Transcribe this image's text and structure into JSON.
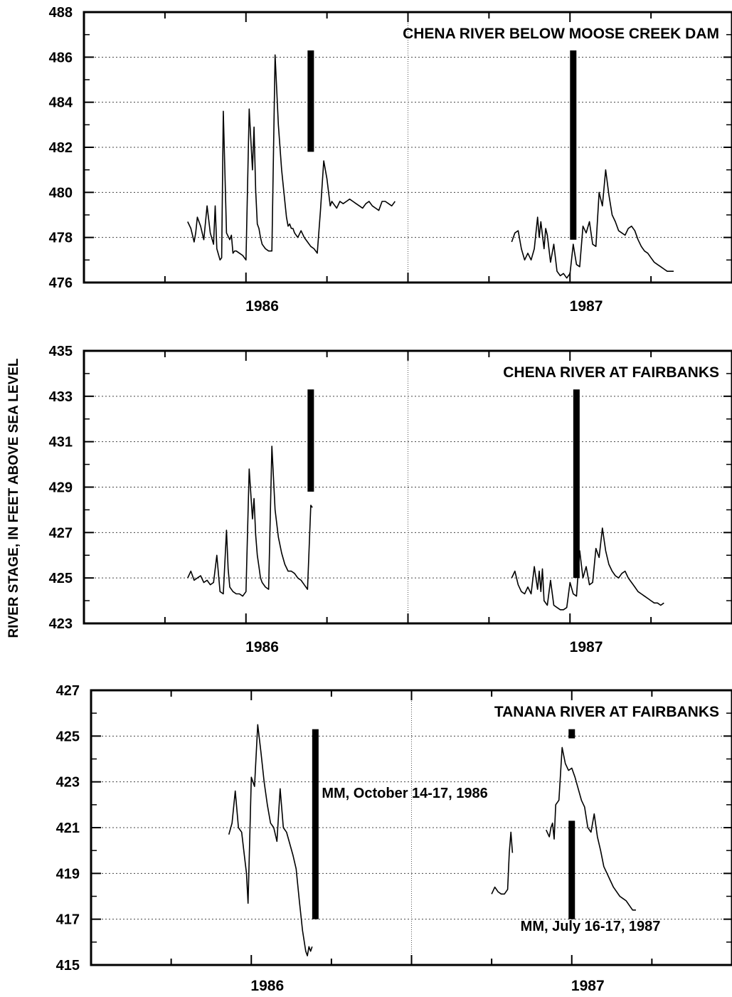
{
  "figure": {
    "ylabel": "RIVER STAGE, IN FEET ABOVE SEA LEVEL"
  },
  "chart_data": [
    {
      "type": "line",
      "title": "CHENA RIVER BELOW MOOSE CREEK DAM",
      "ylim": [
        476,
        488
      ],
      "yticks": [
        476,
        478,
        480,
        482,
        484,
        486,
        488
      ],
      "xlim": [
        1985.5,
        1987.5
      ],
      "year_labels": [
        "1986",
        "1987"
      ],
      "year_label_x": [
        1986.05,
        1987.05
      ],
      "grid": true,
      "series": [
        {
          "x": [
            1985.82,
            1985.83,
            1985.84,
            1985.845,
            1985.85,
            1985.86,
            1985.87,
            1985.88,
            1985.89,
            1985.9,
            1985.905,
            1985.91,
            1985.92,
            1985.925,
            1985.93,
            1985.94,
            1985.95,
            1985.955,
            1985.96,
            1985.965,
            1985.97,
            1985.98,
            1985.99,
            1986.0,
            1986.01,
            1986.02,
            1986.025,
            1986.03,
            1986.035,
            1986.04,
            1986.045,
            1986.05,
            1986.06,
            1986.07,
            1986.08,
            1986.09,
            1986.1,
            1986.11,
            1986.12,
            1986.125,
            1986.13,
            1986.135,
            1986.14,
            1986.145,
            1986.15,
            1986.16,
            1986.17,
            1986.18,
            1986.19,
            1986.2,
            1986.21,
            1986.22,
            1986.23,
            1986.24,
            1986.25,
            1986.26,
            1986.265,
            1986.27,
            1986.28,
            1986.29,
            1986.3,
            1986.31,
            1986.32,
            1986.33,
            1986.34,
            1986.35,
            1986.36,
            1986.37,
            1986.38,
            1986.39,
            1986.4,
            1986.41,
            1986.42,
            1986.43,
            1986.44,
            1986.45,
            1986.455,
            1986.46
          ],
          "y": [
            478.7,
            478.4,
            477.8,
            478.2,
            478.9,
            478.5,
            477.9,
            479.4,
            478.2,
            477.7,
            479.4,
            477.5,
            477.0,
            477.1,
            483.6,
            478.2,
            477.9,
            478.1,
            477.3,
            477.4,
            477.4,
            477.3,
            477.2,
            477.0,
            483.7,
            481.0,
            482.9,
            480.1,
            478.6,
            478.4,
            478.0,
            477.7,
            477.5,
            477.4,
            477.4,
            486.1,
            483.0,
            481.0,
            479.6,
            478.9,
            478.5,
            478.6,
            478.4,
            478.4,
            478.2,
            478.0,
            478.3,
            478.0,
            477.8,
            477.6,
            477.5,
            477.3,
            479.2,
            481.4,
            480.6,
            479.4,
            479.6,
            479.5,
            479.3,
            479.6,
            479.5,
            479.6,
            479.7,
            479.6,
            479.5,
            479.4,
            479.3,
            479.5,
            479.6,
            479.4,
            479.3,
            479.2,
            479.6,
            479.6,
            479.5,
            479.4,
            479.5,
            479.6
          ]
        },
        {
          "x": [
            1986.82,
            1986.83,
            1986.84,
            1986.85,
            1986.86,
            1986.87,
            1986.88,
            1986.89,
            1986.9,
            1986.905,
            1986.91,
            1986.92,
            1986.925,
            1986.93,
            1986.94,
            1986.95,
            1986.96,
            1986.97,
            1986.98,
            1986.99,
            1987.0,
            1987.01,
            1987.02,
            1987.03,
            1987.04,
            1987.05,
            1987.06,
            1987.07,
            1987.08,
            1987.09,
            1987.1,
            1987.11,
            1987.12,
            1987.13,
            1987.14,
            1987.15,
            1987.16,
            1987.17,
            1987.18,
            1987.19,
            1987.2,
            1987.21,
            1987.22,
            1987.23,
            1987.24,
            1987.25,
            1987.26,
            1987.27,
            1987.28,
            1987.29,
            1987.3,
            1987.31,
            1987.32
          ],
          "y": [
            477.8,
            478.2,
            478.3,
            477.5,
            477.0,
            477.3,
            477.0,
            477.5,
            478.9,
            478.0,
            478.7,
            477.5,
            478.4,
            478.1,
            476.9,
            477.7,
            476.5,
            476.3,
            476.4,
            476.2,
            476.4,
            477.7,
            476.8,
            476.7,
            478.5,
            478.2,
            478.7,
            477.7,
            477.6,
            480.0,
            479.4,
            481.0,
            479.9,
            479.0,
            478.7,
            478.3,
            478.2,
            478.1,
            478.4,
            478.5,
            478.3,
            477.9,
            477.6,
            477.4,
            477.3,
            477.1,
            476.9,
            476.8,
            476.7,
            476.6,
            476.5,
            476.5,
            476.5
          ]
        }
      ],
      "bars": [
        {
          "x": 1986.2,
          "y0": 481.8,
          "y1": 486.3
        },
        {
          "x": 1987.01,
          "y0": 477.9,
          "y1": 486.3
        }
      ]
    },
    {
      "type": "line",
      "title": "CHENA RIVER AT FAIRBANKS",
      "ylim": [
        423,
        435
      ],
      "yticks": [
        423,
        425,
        427,
        429,
        431,
        433,
        435
      ],
      "xlim": [
        1985.5,
        1987.5
      ],
      "year_labels": [
        "1986",
        "1987"
      ],
      "year_label_x": [
        1986.05,
        1987.05
      ],
      "grid": true,
      "series": [
        {
          "x": [
            1985.82,
            1985.83,
            1985.84,
            1985.85,
            1985.86,
            1985.87,
            1985.88,
            1985.89,
            1985.9,
            1985.91,
            1985.92,
            1985.93,
            1985.94,
            1985.945,
            1985.95,
            1985.96,
            1985.97,
            1985.98,
            1985.99,
            1986.0,
            1986.01,
            1986.02,
            1986.025,
            1986.03,
            1986.035,
            1986.04,
            1986.045,
            1986.05,
            1986.06,
            1986.07,
            1986.08,
            1986.09,
            1986.1,
            1986.11,
            1986.12,
            1986.13,
            1986.14,
            1986.15,
            1986.16,
            1986.17,
            1986.18,
            1986.19,
            1986.2,
            1986.205
          ],
          "y": [
            425.0,
            425.3,
            424.9,
            425.0,
            425.1,
            424.8,
            424.9,
            424.7,
            424.8,
            426.0,
            424.4,
            424.3,
            427.1,
            425.4,
            424.6,
            424.4,
            424.3,
            424.3,
            424.2,
            424.4,
            429.8,
            427.6,
            428.5,
            426.9,
            426.0,
            425.5,
            425.0,
            424.8,
            424.6,
            424.5,
            430.8,
            428.0,
            426.8,
            426.1,
            425.6,
            425.3,
            425.3,
            425.2,
            425.0,
            424.9,
            424.7,
            424.5,
            428.2,
            428.1
          ]
        },
        {
          "x": [
            1986.82,
            1986.83,
            1986.84,
            1986.85,
            1986.86,
            1986.87,
            1986.88,
            1986.89,
            1986.9,
            1986.905,
            1986.91,
            1986.915,
            1986.92,
            1986.93,
            1986.94,
            1986.95,
            1986.96,
            1986.97,
            1986.98,
            1986.99,
            1987.0,
            1987.01,
            1987.02,
            1987.03,
            1987.04,
            1987.05,
            1987.06,
            1987.07,
            1987.08,
            1987.09,
            1987.1,
            1987.11,
            1987.12,
            1987.13,
            1987.14,
            1987.15,
            1987.16,
            1987.17,
            1987.18,
            1987.19,
            1987.2,
            1987.21,
            1987.22,
            1987.23,
            1987.24,
            1987.25,
            1987.26,
            1987.27,
            1987.28,
            1987.29
          ],
          "y": [
            425.0,
            425.3,
            424.7,
            424.4,
            424.3,
            424.6,
            424.3,
            425.5,
            424.5,
            425.3,
            424.4,
            425.4,
            424.0,
            423.8,
            424.9,
            423.8,
            423.7,
            423.6,
            423.6,
            423.7,
            424.8,
            424.3,
            424.2,
            426.2,
            425.0,
            425.5,
            424.7,
            424.8,
            426.3,
            425.9,
            427.2,
            426.2,
            425.6,
            425.3,
            425.1,
            425.0,
            425.2,
            425.3,
            425.0,
            424.8,
            424.6,
            424.4,
            424.3,
            424.2,
            424.1,
            424.0,
            423.9,
            423.9,
            423.8,
            423.9
          ]
        }
      ],
      "bars": [
        {
          "x": 1986.2,
          "y0": 428.8,
          "y1": 433.3
        },
        {
          "x": 1987.02,
          "y0": 425.0,
          "y1": 433.3
        }
      ]
    },
    {
      "type": "line",
      "title": "TANANA RIVER AT FAIRBANKS",
      "ylim": [
        415,
        427
      ],
      "yticks": [
        415,
        417,
        419,
        421,
        423,
        425,
        427
      ],
      "xlim": [
        1985.5,
        1987.5
      ],
      "year_labels": [
        "1986",
        "1987"
      ],
      "year_label_x": [
        1986.05,
        1987.05
      ],
      "grid": true,
      "annotations": [
        {
          "text": "MM, October 14-17, 1986",
          "x": 1986.22,
          "y": 422.3,
          "anchor": "start"
        },
        {
          "text": "MM, July 16-17, 1987",
          "x": 1986.84,
          "y": 416.5,
          "anchor": "start"
        }
      ],
      "series": [
        {
          "x": [
            1985.93,
            1985.94,
            1985.95,
            1985.96,
            1985.97,
            1985.98,
            1985.985,
            1985.99,
            1986.0,
            1986.01,
            1986.02,
            1986.03,
            1986.04,
            1986.05,
            1986.06,
            1986.07,
            1986.08,
            1986.09,
            1986.1,
            1986.11,
            1986.12,
            1986.13,
            1986.14,
            1986.15,
            1986.16,
            1986.17,
            1986.175,
            1986.18,
            1986.185,
            1986.19
          ],
          "y": [
            420.7,
            421.2,
            422.6,
            421.0,
            420.8,
            419.6,
            419.0,
            417.7,
            423.2,
            422.8,
            425.5,
            424.3,
            423.0,
            422.0,
            421.2,
            421.0,
            420.4,
            422.7,
            421.0,
            420.8,
            420.3,
            419.8,
            419.2,
            417.8,
            416.5,
            415.6,
            415.4,
            415.8,
            415.6,
            415.8
          ]
        },
        {
          "x": [
            1986.75,
            1986.76,
            1986.77,
            1986.78,
            1986.79,
            1986.8,
            1986.805,
            1986.81,
            1986.815
          ],
          "y": [
            418.1,
            418.4,
            418.2,
            418.1,
            418.1,
            418.3,
            419.9,
            420.8,
            419.9
          ]
        },
        {
          "x": [
            1986.92,
            1986.93,
            1986.935,
            1986.94,
            1986.945,
            1986.95,
            1986.96,
            1986.97,
            1986.98,
            1986.99,
            1987.0,
            1987.01,
            1987.02,
            1987.03,
            1987.04,
            1987.05,
            1987.06,
            1987.07,
            1987.08,
            1987.09,
            1987.1,
            1987.11,
            1987.12,
            1987.13,
            1987.14,
            1987.15,
            1987.16,
            1987.17,
            1987.18,
            1987.19,
            1987.2
          ],
          "y": [
            420.9,
            420.6,
            421.0,
            421.2,
            420.5,
            422.0,
            422.2,
            424.5,
            423.8,
            423.5,
            423.6,
            423.2,
            422.7,
            422.2,
            421.9,
            421.0,
            420.8,
            421.6,
            420.6,
            420.0,
            419.3,
            419.0,
            418.7,
            418.4,
            418.2,
            418.0,
            417.9,
            417.8,
            417.6,
            417.4,
            417.4
          ]
        }
      ],
      "bars": [
        {
          "x": 1986.2,
          "y0": 417.0,
          "y1": 425.3
        },
        {
          "x": 1987.0,
          "y0": 424.9,
          "y1": 425.3
        },
        {
          "x": 1987.0,
          "y0": 417.0,
          "y1": 421.3
        }
      ]
    }
  ]
}
